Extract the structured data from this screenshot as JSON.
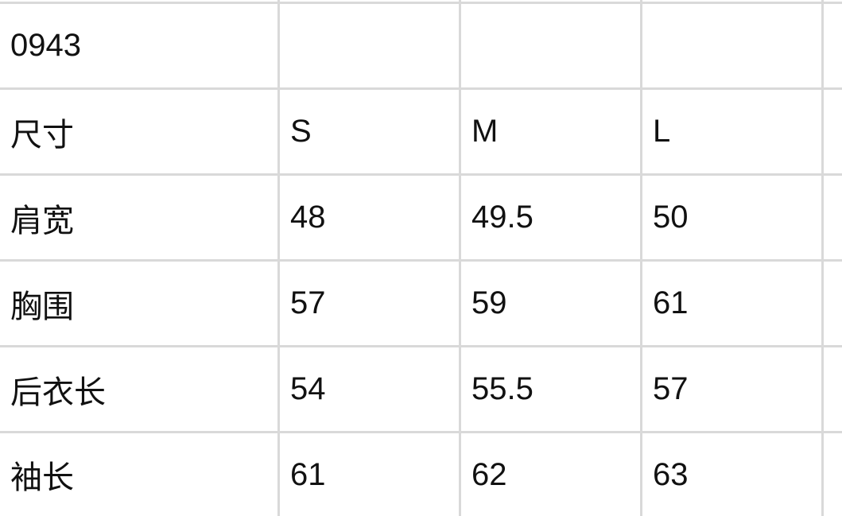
{
  "table": {
    "rows": [
      [
        "",
        "",
        "",
        ""
      ],
      [
        "0943",
        "",
        "",
        ""
      ],
      [
        "尺寸",
        "S",
        "M",
        "L"
      ],
      [
        "肩宽",
        "48",
        "49.5",
        "50"
      ],
      [
        "胸围",
        "57",
        "59",
        "61"
      ],
      [
        "后衣长",
        "54",
        "55.5",
        "57"
      ],
      [
        "袖长",
        "61",
        "62",
        "63"
      ]
    ]
  },
  "colors": {
    "grid_line": "#d9d9d9",
    "text": "#111111",
    "background": "#ffffff"
  }
}
